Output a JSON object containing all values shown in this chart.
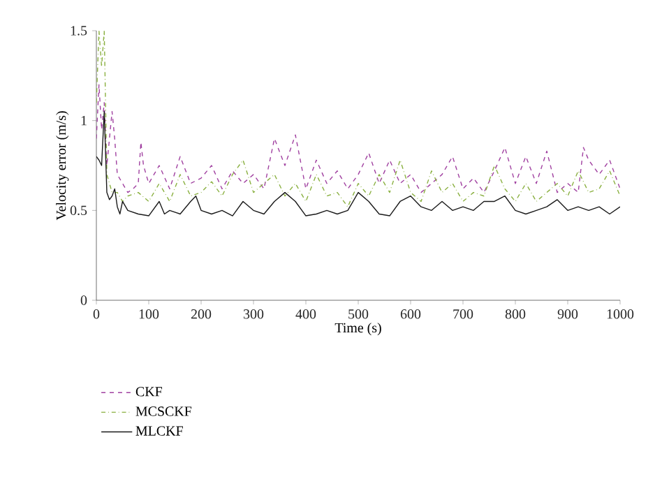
{
  "chart_data": {
    "type": "line",
    "xlabel": "Time (s)",
    "ylabel": "Velocity error (m/s)",
    "xlim": [
      0,
      1000
    ],
    "ylim": [
      0,
      1.5
    ],
    "xticks": [
      0,
      100,
      200,
      300,
      400,
      500,
      600,
      700,
      800,
      900,
      1000
    ],
    "yticks": [
      0,
      0.5,
      1,
      1.5
    ],
    "grid": false,
    "legend": "bottom left",
    "marker": "none",
    "series": [
      {
        "name": "CKF",
        "color": "#a040a0",
        "line_style": "dashed",
        "x": [
          0,
          5,
          10,
          15,
          20,
          30,
          35,
          40,
          50,
          60,
          70,
          80,
          85,
          90,
          100,
          120,
          140,
          160,
          180,
          200,
          220,
          240,
          260,
          280,
          300,
          320,
          340,
          360,
          380,
          400,
          420,
          440,
          460,
          480,
          500,
          520,
          540,
          560,
          580,
          600,
          620,
          640,
          660,
          680,
          700,
          720,
          740,
          760,
          780,
          800,
          820,
          840,
          860,
          880,
          900,
          920,
          930,
          940,
          960,
          980,
          1000
        ],
        "values": [
          0.9,
          1.2,
          0.95,
          1.1,
          0.75,
          1.05,
          0.9,
          0.7,
          0.65,
          0.6,
          0.62,
          0.65,
          0.88,
          0.75,
          0.65,
          0.75,
          0.62,
          0.8,
          0.65,
          0.68,
          0.75,
          0.62,
          0.72,
          0.65,
          0.7,
          0.62,
          0.9,
          0.75,
          0.92,
          0.62,
          0.78,
          0.65,
          0.72,
          0.62,
          0.7,
          0.82,
          0.65,
          0.78,
          0.65,
          0.7,
          0.6,
          0.65,
          0.7,
          0.8,
          0.62,
          0.68,
          0.6,
          0.72,
          0.85,
          0.65,
          0.8,
          0.65,
          0.83,
          0.6,
          0.65,
          0.6,
          0.85,
          0.78,
          0.7,
          0.78,
          0.62
        ]
      },
      {
        "name": "MCSCKF",
        "color": "#8ab040",
        "line_style": "dashdot",
        "x": [
          0,
          5,
          10,
          15,
          20,
          30,
          40,
          50,
          60,
          80,
          100,
          120,
          140,
          160,
          180,
          200,
          220,
          240,
          260,
          280,
          300,
          320,
          340,
          360,
          380,
          400,
          420,
          440,
          460,
          480,
          500,
          520,
          540,
          560,
          580,
          600,
          620,
          640,
          660,
          680,
          700,
          720,
          740,
          760,
          780,
          800,
          820,
          840,
          860,
          880,
          900,
          920,
          940,
          960,
          980,
          1000
        ],
        "values": [
          1.1,
          1.5,
          1.3,
          1.5,
          0.7,
          0.6,
          0.6,
          0.55,
          0.58,
          0.6,
          0.55,
          0.65,
          0.55,
          0.7,
          0.58,
          0.6,
          0.66,
          0.58,
          0.7,
          0.78,
          0.6,
          0.65,
          0.7,
          0.58,
          0.65,
          0.55,
          0.7,
          0.58,
          0.6,
          0.52,
          0.65,
          0.58,
          0.7,
          0.6,
          0.78,
          0.6,
          0.55,
          0.72,
          0.6,
          0.65,
          0.55,
          0.6,
          0.58,
          0.75,
          0.62,
          0.55,
          0.65,
          0.55,
          0.6,
          0.65,
          0.58,
          0.72,
          0.6,
          0.62,
          0.72,
          0.58
        ]
      },
      {
        "name": "MLCKF",
        "color": "#1a1a1a",
        "line_style": "solid",
        "x": [
          0,
          5,
          10,
          15,
          20,
          25,
          30,
          35,
          40,
          45,
          50,
          60,
          80,
          100,
          120,
          130,
          140,
          160,
          180,
          190,
          200,
          220,
          240,
          260,
          280,
          300,
          320,
          340,
          360,
          380,
          400,
          420,
          440,
          460,
          480,
          500,
          520,
          540,
          560,
          580,
          600,
          620,
          640,
          660,
          680,
          700,
          720,
          740,
          760,
          780,
          800,
          820,
          840,
          860,
          880,
          900,
          920,
          940,
          960,
          980,
          1000
        ],
        "values": [
          0.8,
          0.78,
          0.75,
          1.05,
          0.6,
          0.56,
          0.58,
          0.62,
          0.52,
          0.48,
          0.55,
          0.5,
          0.48,
          0.47,
          0.55,
          0.48,
          0.5,
          0.48,
          0.55,
          0.58,
          0.5,
          0.48,
          0.5,
          0.47,
          0.55,
          0.5,
          0.48,
          0.55,
          0.6,
          0.55,
          0.47,
          0.48,
          0.5,
          0.48,
          0.5,
          0.6,
          0.55,
          0.48,
          0.47,
          0.55,
          0.58,
          0.52,
          0.5,
          0.55,
          0.5,
          0.52,
          0.5,
          0.55,
          0.55,
          0.58,
          0.5,
          0.48,
          0.5,
          0.52,
          0.56,
          0.5,
          0.52,
          0.5,
          0.52,
          0.48,
          0.52
        ]
      }
    ]
  }
}
